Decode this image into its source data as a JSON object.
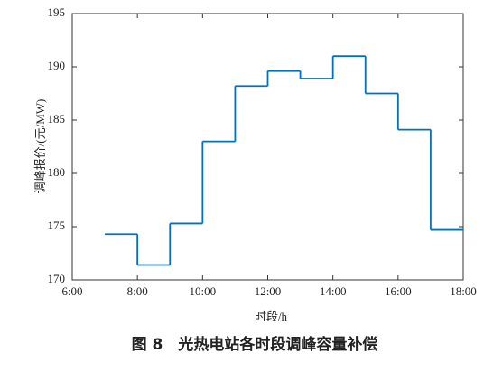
{
  "chart_data": {
    "type": "step",
    "x_label": "时段/h",
    "y_label": "调峰报价/(元/MW)",
    "caption": "图 8　光热电站各时段调峰容量补偿",
    "x": [
      7,
      8,
      9,
      10,
      11,
      12,
      13,
      14,
      15,
      16,
      17
    ],
    "series": [
      {
        "color": "#0072bd",
        "values": [
          174.3,
          171.4,
          175.3,
          183.0,
          188.2,
          189.6,
          188.9,
          191.0,
          187.5,
          184.1,
          174.7
        ]
      }
    ],
    "xlim": [
      6,
      18
    ],
    "xticks": [
      {
        "value": 6,
        "label": "6:00"
      },
      {
        "value": 8,
        "label": "8:00"
      },
      {
        "value": 10,
        "label": "10:00"
      },
      {
        "value": 12,
        "label": "12:00"
      },
      {
        "value": 14,
        "label": "14:00"
      },
      {
        "value": 16,
        "label": "16:00"
      },
      {
        "value": 18,
        "label": "18:00"
      }
    ],
    "ylim": [
      170,
      195
    ],
    "yticks": [
      170,
      175,
      180,
      185,
      190,
      195
    ]
  }
}
